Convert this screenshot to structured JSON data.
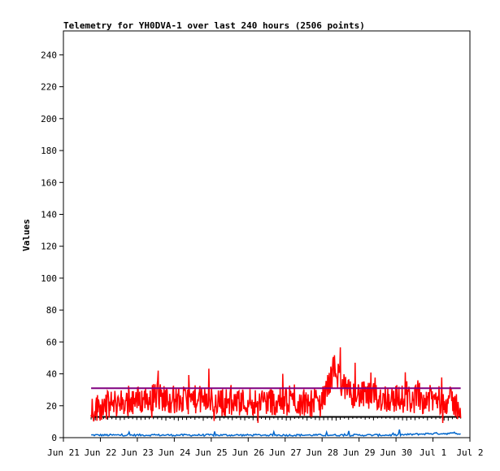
{
  "chart_data": {
    "type": "line",
    "title": "Telemetry for YH0DVA-1 over last 240 hours (2506 points)",
    "xlabel": "",
    "ylabel": "Values",
    "xlim": [
      "2022-06-21",
      "2022-07-02"
    ],
    "ylim": [
      0,
      255
    ],
    "x_ticks": [
      "Jun 21",
      "Jun 22",
      "Jun 23",
      "Jun 24",
      "Jun 25",
      "Jun 26",
      "Jun 27",
      "Jun 28",
      "Jun 29",
      "Jun 30",
      "Jul 1",
      "Jul 2"
    ],
    "y_ticks": [
      0,
      20,
      40,
      60,
      80,
      100,
      120,
      140,
      160,
      180,
      200,
      220,
      240
    ],
    "grid": false,
    "legend": "none",
    "data_range_x": [
      "2022-06-21T18:00",
      "2022-07-01T18:00"
    ],
    "series": [
      {
        "color": "#ff0000",
        "style": "noisy",
        "x": [
          "2022-06-21T18:00",
          "2022-06-22T12:00",
          "2022-06-23T04:00",
          "2022-06-23T12:00",
          "2022-06-24T04:00",
          "2022-06-24T12:00",
          "2022-06-25T12:00",
          "2022-06-26T12:00",
          "2022-06-27T12:00",
          "2022-06-28T00:00",
          "2022-06-28T08:00",
          "2022-06-28T16:00",
          "2022-06-29T12:00",
          "2022-06-30T12:00",
          "2022-07-01T00:00",
          "2022-07-01T12:00",
          "2022-07-01T18:00"
        ],
        "values": [
          18,
          22,
          24,
          26,
          23,
          24,
          22,
          23,
          22,
          22,
          44,
          28,
          25,
          24,
          24,
          23,
          18
        ]
      },
      {
        "color": "#800080",
        "style": "flat",
        "x": [
          "2022-06-21T18:00",
          "2022-07-01T18:00"
        ],
        "values": [
          31,
          31
        ]
      },
      {
        "color": "#000000",
        "style": "flat",
        "x": [
          "2022-06-21T18:00",
          "2022-07-01T06:00",
          "2022-07-01T08:00",
          "2022-07-01T18:00"
        ],
        "values": [
          13,
          13,
          13,
          13
        ]
      },
      {
        "color": "#0066cc",
        "style": "low",
        "x": [
          "2022-06-21T18:00",
          "2022-06-26T00:00",
          "2022-06-30T00:00",
          "2022-07-01T00:00",
          "2022-07-01T18:00"
        ],
        "values": [
          1,
          1,
          1,
          2,
          2
        ]
      }
    ]
  }
}
